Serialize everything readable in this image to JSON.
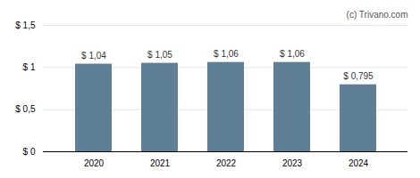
{
  "chart_data": {
    "type": "bar",
    "categories": [
      "2020",
      "2021",
      "2022",
      "2023",
      "2024"
    ],
    "values": [
      1.04,
      1.05,
      1.06,
      1.06,
      0.795
    ],
    "value_labels": [
      "$ 1,04",
      "$ 1,05",
      "$ 1,06",
      "$ 1,06",
      "$ 0,795"
    ],
    "data_labels": true,
    "color": "#5f7f96",
    "ylim": [
      0,
      1.5
    ],
    "yticks": [
      {
        "value": 0,
        "label": "$ 0"
      },
      {
        "value": 0.5,
        "label": "$ 0,5"
      },
      {
        "value": 1.0,
        "label": "$ 1"
      },
      {
        "value": 1.5,
        "label": "$ 1,5"
      }
    ],
    "grid": true,
    "annotations": [
      "(c) Trivano.com"
    ]
  }
}
